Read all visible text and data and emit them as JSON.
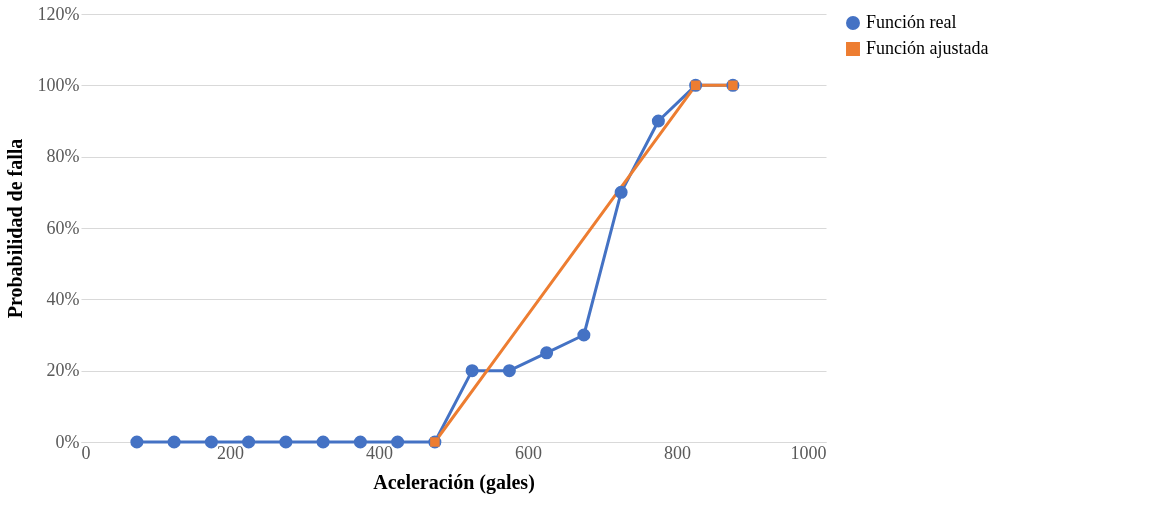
{
  "chart_data": {
    "type": "line",
    "xlabel": "Aceleración (gales)",
    "ylabel": "Probabilidad  de falla",
    "xlim": [
      0,
      1000
    ],
    "xticks": [
      0,
      200,
      400,
      600,
      800,
      1000
    ],
    "ylim": [
      0,
      120
    ],
    "yticks": [
      {
        "value": 0,
        "label": "0%"
      },
      {
        "value": 20,
        "label": "20%"
      },
      {
        "value": 40,
        "label": "40%"
      },
      {
        "value": 60,
        "label": "60%"
      },
      {
        "value": 80,
        "label": "80%"
      },
      {
        "value": 100,
        "label": "100%"
      },
      {
        "value": 120,
        "label": "120%"
      }
    ],
    "grid": "y",
    "legend": "right",
    "line_style": "solid",
    "series": [
      {
        "name": "Función real",
        "color": "#4472c4",
        "marker": "circle",
        "x": [
          75,
          125,
          175,
          225,
          275,
          325,
          375,
          425,
          475,
          525,
          575,
          625,
          675,
          725,
          775,
          825,
          875
        ],
        "values": [
          0,
          0,
          0,
          0,
          0,
          0,
          0,
          0,
          0,
          20,
          20,
          25,
          30,
          70,
          90,
          100,
          100
        ]
      },
      {
        "name": "Función ajustada",
        "color": "#ed7d31",
        "marker": "square",
        "x": [
          475,
          825,
          875
        ],
        "values": [
          0,
          100,
          100
        ]
      }
    ]
  }
}
